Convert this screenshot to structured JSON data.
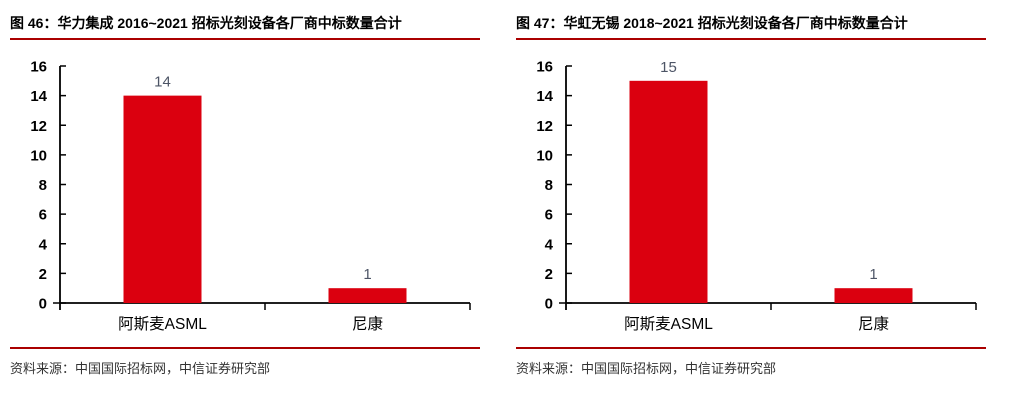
{
  "page": {
    "background": "#FFFFFF",
    "description_left_figure_number": "图 46",
    "description_right_figure_number": "图 47"
  },
  "colors": {
    "bar_red": "#DB000F",
    "accent_rule": "#AA0000",
    "axis_black": "#000000",
    "value_label_gray": "#4D5566",
    "category_label_black": "#000000",
    "title_text": "#000000",
    "source_text": "#333333"
  },
  "chart_data": [
    {
      "type": "bar",
      "title": "图 46：华力集成 2016~2021 招标光刻设备各厂商中标数量合计",
      "categories": [
        "阿斯麦ASML",
        "尼康"
      ],
      "values": [
        14,
        1
      ],
      "data_labels": [
        "14",
        "1"
      ],
      "xlabel": "",
      "ylabel": "",
      "ylim": [
        0,
        16
      ],
      "ytick_step": 2,
      "yticks": [
        0,
        2,
        4,
        6,
        8,
        10,
        12,
        14,
        16
      ],
      "grid": false,
      "legend": "none",
      "bar_color": "#DB000F",
      "source_note": "资料来源：中国国际招标网，中信证券研究部"
    },
    {
      "type": "bar",
      "title": "图 47：华虹无锡 2018~2021 招标光刻设备各厂商中标数量合计",
      "categories": [
        "阿斯麦ASML",
        "尼康"
      ],
      "values": [
        15,
        1
      ],
      "data_labels": [
        "15",
        "1"
      ],
      "xlabel": "",
      "ylabel": "",
      "ylim": [
        0,
        16
      ],
      "ytick_step": 2,
      "yticks": [
        0,
        2,
        4,
        6,
        8,
        10,
        12,
        14,
        16
      ],
      "grid": false,
      "legend": "none",
      "bar_color": "#DB000F",
      "source_note": "资料来源：中国国际招标网，中信证券研究部"
    }
  ]
}
